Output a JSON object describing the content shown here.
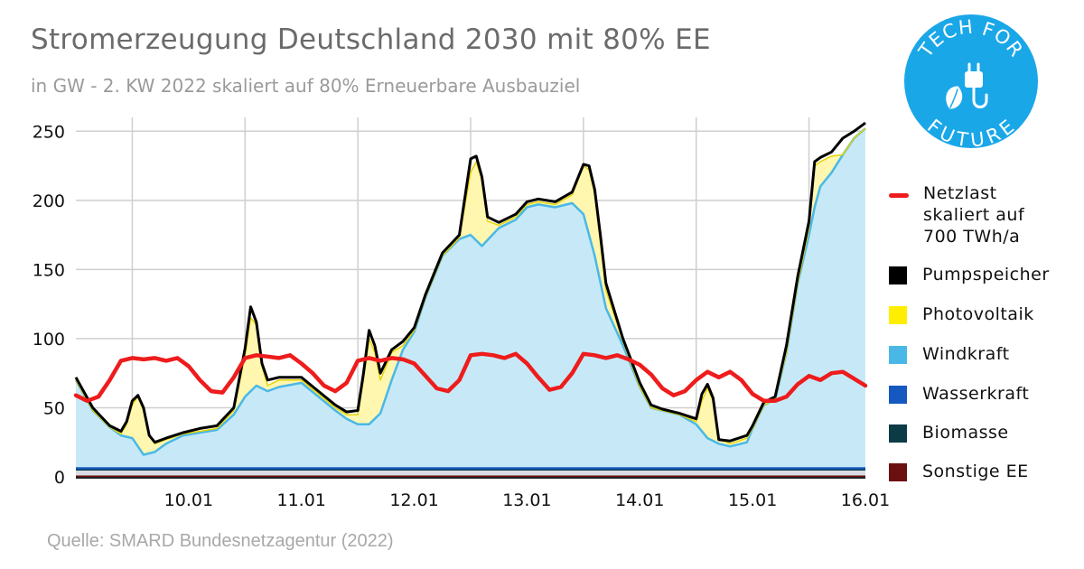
{
  "header": {
    "title": "Stromerzeugung Deutschland 2030 mit 80% EE",
    "subtitle": "in GW - 2. KW 2022 skaliert auf 80% Erneuerbare Ausbauziel"
  },
  "source": "Quelle: SMARD Bundesnetzagentur (2022)",
  "logo": {
    "top_text": "TECH FOR",
    "bottom_text": "FUTURE",
    "color": "#1aa7e8",
    "icon": "leaf-plug-icon"
  },
  "colors": {
    "netzlast": "#ee1c1c",
    "pumpspeicher": "#000000",
    "photovoltaik": "#ffee00",
    "photovoltaik_fill": "#fff6b0",
    "windkraft": "#4ab8e6",
    "windkraft_fill": "#c7e9f7",
    "wasserkraft": "#1558c0",
    "biomasse": "#0d3b45",
    "sonstige": "#6b1010",
    "grid": "#cfcfcf"
  },
  "legend": [
    {
      "key": "netzlast",
      "label": "Netzlast\nskaliert auf\n700 TWh/a",
      "shape": "line"
    },
    {
      "key": "pumpspeicher",
      "label": "Pumpspeicher",
      "shape": "box"
    },
    {
      "key": "photovoltaik",
      "label": "Photovoltaik",
      "shape": "box"
    },
    {
      "key": "windkraft",
      "label": "Windkraft",
      "shape": "box"
    },
    {
      "key": "wasserkraft",
      "label": "Wasserkraft",
      "shape": "box"
    },
    {
      "key": "biomasse",
      "label": "Biomasse",
      "shape": "box"
    },
    {
      "key": "sonstige",
      "label": "Sonstige EE",
      "shape": "box"
    }
  ],
  "chart_data": {
    "type": "area",
    "x_unit": "days (start of 10.01 = 0)",
    "xlim": [
      -0.5,
      6.5
    ],
    "ylim": [
      0,
      260
    ],
    "yticks": [
      0,
      50,
      100,
      150,
      200,
      250
    ],
    "categories": [
      "10.01",
      "11.01",
      "12.01",
      "13.01",
      "14.01",
      "15.01",
      "16.01"
    ],
    "grid": true,
    "legend_position": "right",
    "series": [
      {
        "key": "sonstige",
        "name": "Sonstige EE",
        "constant": 1
      },
      {
        "key": "biomasse",
        "name": "Biomasse",
        "constant": 4
      },
      {
        "key": "wasserkraft",
        "name": "Wasserkraft",
        "constant": 2
      },
      {
        "key": "windkraft",
        "name": "Windkraft",
        "cumulative": true,
        "x": [
          -0.5,
          -0.35,
          -0.2,
          -0.1,
          0,
          0.05,
          0.1,
          0.2,
          0.3,
          0.45,
          0.6,
          0.75,
          0.9,
          1.0,
          1.1,
          1.2,
          1.3,
          1.5,
          1.65,
          1.8,
          1.9,
          2.0,
          2.1,
          2.2,
          2.3,
          2.4,
          2.5,
          2.6,
          2.75,
          2.9,
          3.0,
          3.1,
          3.25,
          3.4,
          3.5,
          3.6,
          3.75,
          3.9,
          4.0,
          4.1,
          4.2,
          4.35,
          4.5,
          4.6,
          4.7,
          4.85,
          5.0,
          5.1,
          5.2,
          5.3,
          5.45,
          5.5,
          5.6,
          5.7,
          5.8,
          5.9,
          6.0,
          6.05,
          6.1,
          6.2,
          6.3,
          6.4,
          6.5
        ],
        "values": [
          70,
          48,
          36,
          30,
          28,
          22,
          16,
          18,
          24,
          30,
          32,
          34,
          45,
          58,
          66,
          62,
          65,
          68,
          58,
          48,
          42,
          38,
          38,
          46,
          70,
          92,
          105,
          130,
          160,
          172,
          175,
          167,
          180,
          186,
          195,
          197,
          195,
          198,
          190,
          160,
          122,
          95,
          65,
          50,
          48,
          45,
          38,
          28,
          24,
          22,
          25,
          35,
          52,
          56,
          90,
          140,
          175,
          195,
          210,
          220,
          233,
          245,
          252
        ]
      },
      {
        "key": "photovoltaik",
        "name": "Photovoltaik",
        "cumulative": true,
        "x": [
          -0.5,
          -0.35,
          -0.2,
          -0.1,
          -0.05,
          0,
          0.05,
          0.1,
          0.15,
          0.2,
          0.3,
          0.45,
          0.6,
          0.75,
          0.9,
          1.0,
          1.05,
          1.1,
          1.15,
          1.2,
          1.3,
          1.5,
          1.65,
          1.8,
          1.9,
          2.0,
          2.05,
          2.1,
          2.15,
          2.2,
          2.3,
          2.4,
          2.5,
          2.6,
          2.75,
          2.9,
          3.0,
          3.05,
          3.1,
          3.15,
          3.25,
          3.4,
          3.5,
          3.6,
          3.75,
          3.9,
          4.0,
          4.05,
          4.1,
          4.15,
          4.2,
          4.35,
          4.5,
          4.6,
          4.7,
          4.85,
          5.0,
          5.05,
          5.1,
          5.15,
          5.2,
          5.3,
          5.45,
          5.5,
          5.6,
          5.7,
          5.8,
          5.9,
          6.0,
          6.05,
          6.1,
          6.2,
          6.3,
          6.4,
          6.5
        ],
        "values": [
          70,
          48,
          36,
          31,
          38,
          52,
          58,
          48,
          30,
          24,
          27,
          31,
          33,
          35,
          48,
          88,
          115,
          110,
          80,
          66,
          70,
          70,
          60,
          50,
          45,
          45,
          70,
          100,
          90,
          70,
          90,
          95,
          106,
          130,
          160,
          173,
          220,
          228,
          215,
          185,
          182,
          188,
          197,
          199,
          197,
          204,
          225,
          222,
          205,
          170,
          135,
          98,
          65,
          50,
          48,
          45,
          40,
          55,
          64,
          55,
          28,
          24,
          28,
          35,
          52,
          56,
          90,
          140,
          180,
          225,
          228,
          232,
          233,
          245,
          252
        ]
      },
      {
        "key": "pumpspeicher",
        "name": "Pumpspeicher",
        "line": true,
        "x": [
          -0.5,
          -0.35,
          -0.2,
          -0.1,
          -0.05,
          0,
          0.05,
          0.1,
          0.15,
          0.2,
          0.3,
          0.45,
          0.6,
          0.75,
          0.9,
          1.0,
          1.05,
          1.1,
          1.15,
          1.2,
          1.3,
          1.5,
          1.65,
          1.8,
          1.9,
          2.0,
          2.05,
          2.1,
          2.15,
          2.2,
          2.3,
          2.4,
          2.5,
          2.6,
          2.75,
          2.9,
          3.0,
          3.05,
          3.1,
          3.15,
          3.25,
          3.4,
          3.5,
          3.6,
          3.75,
          3.9,
          4.0,
          4.05,
          4.1,
          4.15,
          4.2,
          4.35,
          4.5,
          4.6,
          4.7,
          4.85,
          5.0,
          5.05,
          5.1,
          5.15,
          5.2,
          5.3,
          5.45,
          5.5,
          5.6,
          5.7,
          5.8,
          5.9,
          6.0,
          6.05,
          6.1,
          6.2,
          6.3,
          6.4,
          6.5
        ],
        "values": [
          72,
          50,
          37,
          33,
          40,
          55,
          59,
          50,
          30,
          25,
          28,
          32,
          35,
          37,
          50,
          93,
          123,
          112,
          82,
          70,
          72,
          72,
          62,
          52,
          47,
          48,
          75,
          106,
          95,
          75,
          92,
          98,
          108,
          132,
          162,
          175,
          230,
          232,
          217,
          188,
          184,
          190,
          199,
          201,
          199,
          206,
          226,
          225,
          208,
          175,
          140,
          100,
          68,
          52,
          49,
          46,
          42,
          60,
          67,
          57,
          27,
          26,
          30,
          37,
          54,
          58,
          95,
          145,
          185,
          228,
          231,
          235,
          245,
          250,
          256
        ]
      },
      {
        "key": "netzlast",
        "name": "Netzlast skaliert auf 700 TWh/a",
        "line": true,
        "x": [
          -0.5,
          -0.4,
          -0.3,
          -0.2,
          -0.1,
          0,
          0.1,
          0.2,
          0.3,
          0.4,
          0.5,
          0.6,
          0.7,
          0.8,
          0.9,
          1.0,
          1.1,
          1.2,
          1.3,
          1.4,
          1.5,
          1.6,
          1.7,
          1.8,
          1.9,
          2.0,
          2.1,
          2.2,
          2.3,
          2.4,
          2.5,
          2.6,
          2.7,
          2.8,
          2.9,
          3.0,
          3.1,
          3.2,
          3.3,
          3.4,
          3.5,
          3.6,
          3.7,
          3.8,
          3.9,
          4.0,
          4.1,
          4.2,
          4.3,
          4.4,
          4.5,
          4.6,
          4.7,
          4.8,
          4.9,
          5.0,
          5.1,
          5.2,
          5.3,
          5.4,
          5.5,
          5.6,
          5.7,
          5.8,
          5.9,
          6.0,
          6.1,
          6.2,
          6.3,
          6.4,
          6.5
        ],
        "values": [
          59,
          55,
          58,
          70,
          84,
          86,
          85,
          86,
          84,
          86,
          80,
          70,
          62,
          61,
          72,
          86,
          88,
          87,
          86,
          88,
          82,
          75,
          66,
          62,
          68,
          84,
          86,
          84,
          86,
          85,
          82,
          73,
          64,
          62,
          70,
          88,
          89,
          88,
          86,
          89,
          82,
          72,
          63,
          65,
          75,
          89,
          88,
          86,
          88,
          85,
          81,
          74,
          64,
          59,
          62,
          70,
          76,
          72,
          76,
          70,
          60,
          55,
          55,
          58,
          67,
          73,
          70,
          75,
          76,
          71,
          66
        ]
      }
    ]
  }
}
